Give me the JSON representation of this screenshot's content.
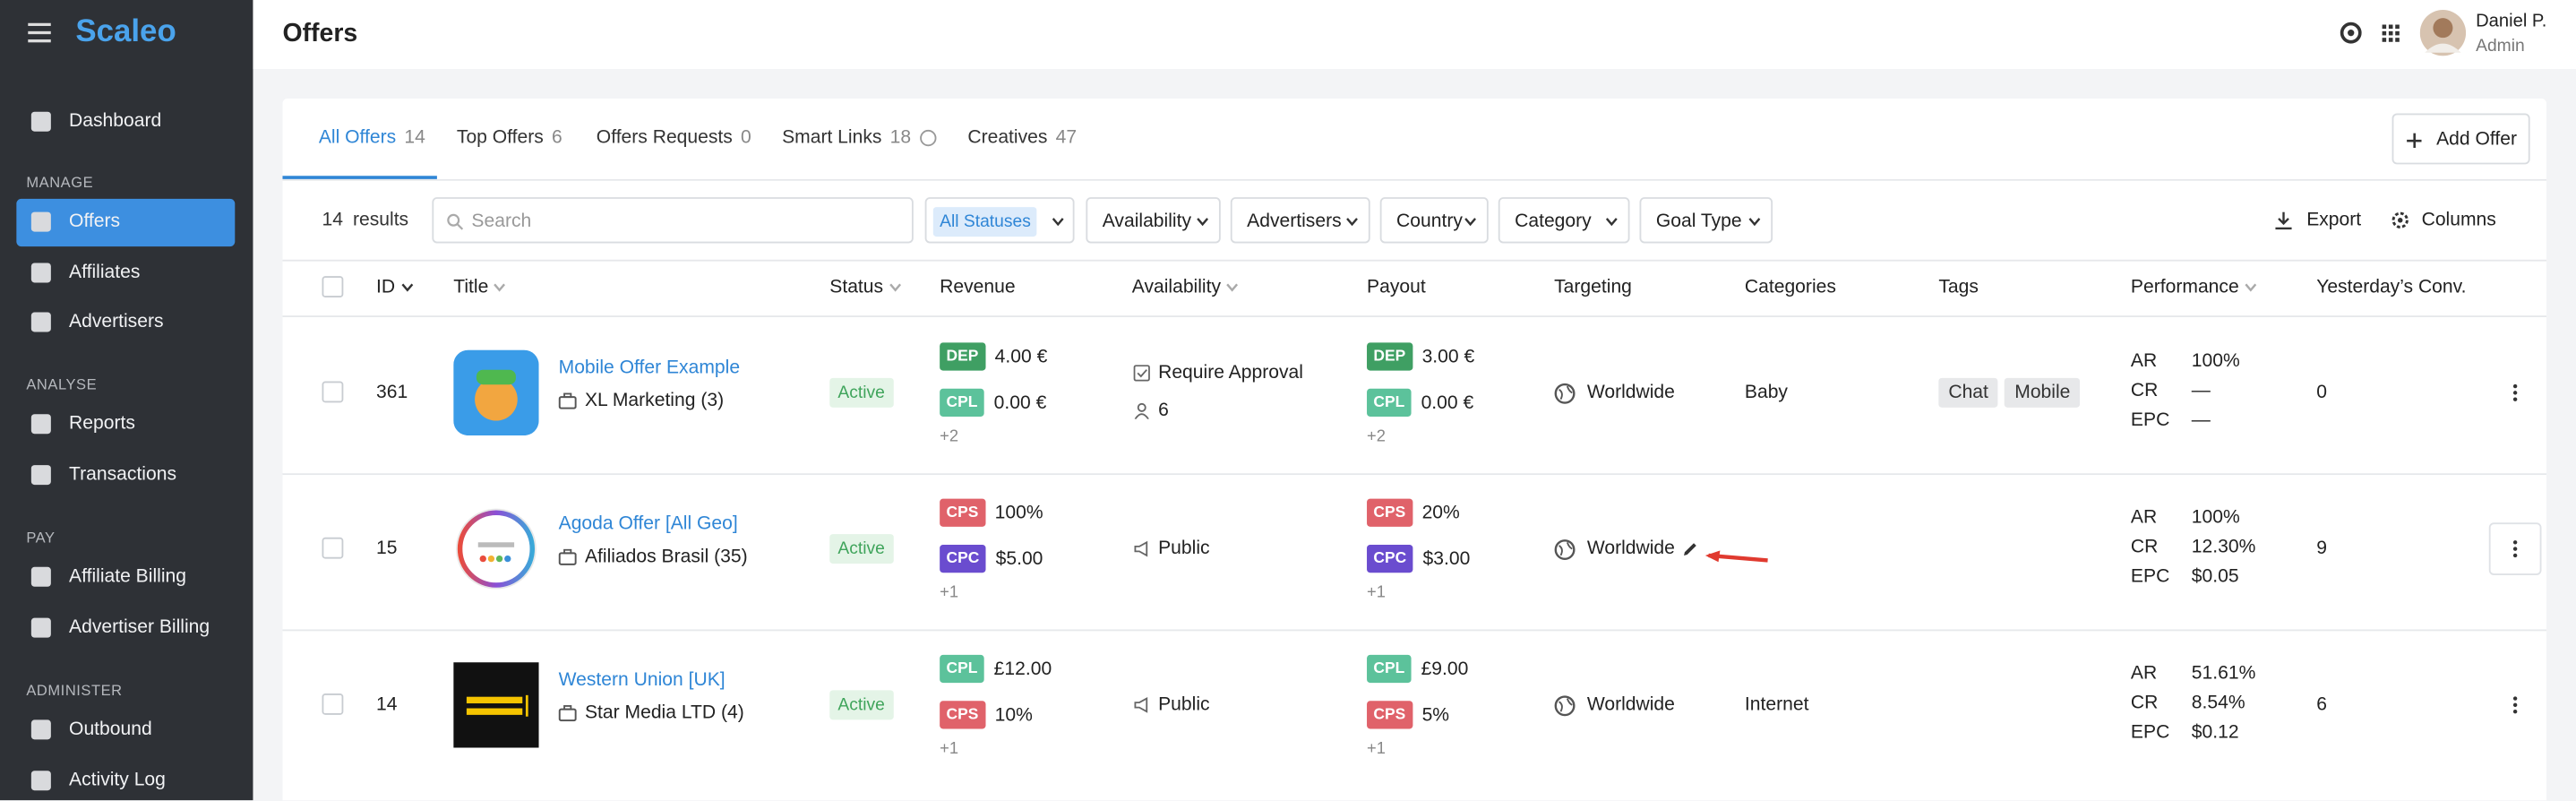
{
  "sidebar": {
    "brand": "Scaleo",
    "top": [
      {
        "label": "Dashboard"
      }
    ],
    "sections": [
      {
        "title": "MANAGE",
        "items": [
          {
            "label": "Offers",
            "active": true
          },
          {
            "label": "Affiliates"
          },
          {
            "label": "Advertisers"
          }
        ]
      },
      {
        "title": "ANALYSE",
        "items": [
          {
            "label": "Reports"
          },
          {
            "label": "Transactions"
          }
        ]
      },
      {
        "title": "PAY",
        "items": [
          {
            "label": "Affiliate Billing"
          },
          {
            "label": "Advertiser Billing"
          }
        ]
      },
      {
        "title": "ADMINISTER",
        "items": [
          {
            "label": "Outbound"
          },
          {
            "label": "Activity Log"
          }
        ]
      }
    ]
  },
  "header": {
    "title": "Offers",
    "user": {
      "name": "Daniel P.",
      "role": "Admin"
    }
  },
  "tabs": [
    {
      "label": "All Offers",
      "count": 14,
      "active": true
    },
    {
      "label": "Top Offers",
      "count": 6
    },
    {
      "label": "Offers Requests",
      "count": 0
    },
    {
      "label": "Smart Links",
      "count": 18,
      "info": true
    },
    {
      "label": "Creatives",
      "count": 47
    }
  ],
  "add_offer": "Add Offer",
  "toolbar": {
    "results_count": 14,
    "results_label": "results",
    "search_placeholder": "Search",
    "status_filter": "All Statuses",
    "filters": [
      "Availability",
      "Advertisers",
      "Country",
      "Category",
      "Goal Type"
    ],
    "export": "Export",
    "columns": "Columns"
  },
  "table": {
    "columns": [
      "ID",
      "Title",
      "Status",
      "Revenue",
      "Availability",
      "Payout",
      "Targeting",
      "Categories",
      "Tags",
      "Performance",
      "Yesterday’s Conv."
    ],
    "rows": [
      {
        "id": 361,
        "title": "Mobile Offer Example",
        "advertiser": "XL Marketing (3)",
        "status": "Active",
        "revenue": [
          {
            "type": "DEP",
            "value": "4.00 €",
            "color": "#3f9f63"
          },
          {
            "type": "CPL",
            "value": "0.00 €",
            "color": "#5cc29b"
          }
        ],
        "revenue_more": "+2",
        "availability": [
          "Require Approval",
          "6"
        ],
        "payout": [
          {
            "type": "DEP",
            "value": "3.00 €",
            "color": "#3f9f63"
          },
          {
            "type": "CPL",
            "value": "0.00 €",
            "color": "#5cc29b"
          }
        ],
        "payout_more": "+2",
        "targeting": "Worldwide",
        "categories": "Baby",
        "tags": [
          "Chat",
          "Mobile"
        ],
        "performance": [
          {
            "label": "AR",
            "value": "100%"
          },
          {
            "label": "CR",
            "value": "—"
          },
          {
            "label": "EPC",
            "value": "—"
          }
        ],
        "yesterday_conv": 0
      },
      {
        "id": 15,
        "title": "Agoda Offer [All Geo]",
        "advertiser": "Afiliados Brasil (35)",
        "status": "Active",
        "revenue": [
          {
            "type": "CPS",
            "value": "100%",
            "color": "#e0626a"
          },
          {
            "type": "CPC",
            "value": "$5.00",
            "color": "#6a4ccf"
          }
        ],
        "revenue_more": "+1",
        "availability": [
          "Public"
        ],
        "payout": [
          {
            "type": "CPS",
            "value": "20%",
            "color": "#e0626a"
          },
          {
            "type": "CPC",
            "value": "$3.00",
            "color": "#6a4ccf"
          }
        ],
        "payout_more": "+1",
        "targeting": "Worldwide",
        "categories": null,
        "tags": [],
        "performance": [
          {
            "label": "AR",
            "value": "100%"
          },
          {
            "label": "CR",
            "value": "12.30%"
          },
          {
            "label": "EPC",
            "value": "$0.05"
          }
        ],
        "yesterday_conv": 9
      },
      {
        "id": 14,
        "title": "Western Union [UK]",
        "advertiser": "Star Media LTD (4)",
        "status": "Active",
        "revenue": [
          {
            "type": "CPL",
            "value": "£12.00",
            "color": "#5cc29b"
          },
          {
            "type": "CPS",
            "value": "10%",
            "color": "#e0626a"
          }
        ],
        "revenue_more": "+1",
        "availability": [
          "Public"
        ],
        "payout": [
          {
            "type": "CPL",
            "value": "£9.00",
            "color": "#5cc29b"
          },
          {
            "type": "CPS",
            "value": "5%",
            "color": "#e0626a"
          }
        ],
        "payout_more": "+1",
        "targeting": "Worldwide",
        "categories": "Internet",
        "tags": [],
        "performance": [
          {
            "label": "AR",
            "value": "51.61%"
          },
          {
            "label": "CR",
            "value": "8.54%"
          },
          {
            "label": "EPC",
            "value": "$0.12"
          }
        ],
        "yesterday_conv": 6
      }
    ]
  }
}
